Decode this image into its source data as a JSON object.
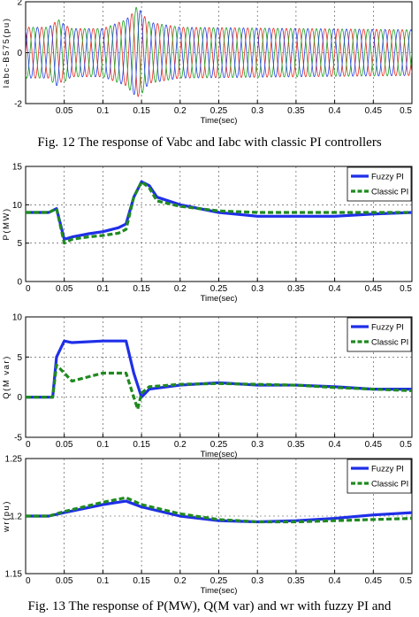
{
  "captions": {
    "fig12": "Fig. 12 The response of Vabc and Iabc with classic PI controllers",
    "fig13": "Fig. 13 The response of P(MW), Q(M var) and wr  with fuzzy PI and"
  },
  "colors": {
    "fuzzy": "#1f2fe8",
    "classic": "#1f8a1f",
    "phase_a": "#e8281e",
    "phase_b": "#1a9e1a",
    "phase_c": "#2040e0"
  },
  "chart_data": [
    {
      "type": "line",
      "id": "iabc",
      "title": "",
      "xlabel": "Time(sec)",
      "ylabel": "Iabc-B575(pu)",
      "xlim": [
        0,
        0.5
      ],
      "ylim": [
        -2,
        2
      ],
      "xticks": [
        "0.05",
        "0.1",
        "0.15",
        "0.2",
        "0.25",
        "0.3",
        "0.35",
        "0.4",
        "0.45",
        "0.5"
      ],
      "yticks": [
        "-2",
        "0",
        "2"
      ],
      "grid": true,
      "frequency_hz": 60,
      "series": [
        {
          "phase": "a",
          "envelope": [
            [
              0,
              1.0
            ],
            [
              0.03,
              1.0
            ],
            [
              0.04,
              1.25
            ],
            [
              0.06,
              0.95
            ],
            [
              0.1,
              0.95
            ],
            [
              0.13,
              1.3
            ],
            [
              0.145,
              1.75
            ],
            [
              0.16,
              1.2
            ],
            [
              0.2,
              1.0
            ],
            [
              0.5,
              0.9
            ]
          ]
        },
        {
          "phase": "b",
          "envelope": [
            [
              0,
              1.0
            ],
            [
              0.03,
              1.0
            ],
            [
              0.04,
              1.35
            ],
            [
              0.06,
              0.95
            ],
            [
              0.1,
              0.95
            ],
            [
              0.13,
              1.3
            ],
            [
              0.145,
              1.85
            ],
            [
              0.16,
              1.2
            ],
            [
              0.2,
              1.0
            ],
            [
              0.5,
              0.9
            ]
          ]
        },
        {
          "phase": "c",
          "envelope": [
            [
              0,
              1.0
            ],
            [
              0.03,
              1.0
            ],
            [
              0.04,
              1.3
            ],
            [
              0.06,
              0.95
            ],
            [
              0.1,
              0.95
            ],
            [
              0.13,
              1.3
            ],
            [
              0.145,
              1.8
            ],
            [
              0.16,
              1.2
            ],
            [
              0.2,
              1.0
            ],
            [
              0.5,
              0.9
            ]
          ]
        }
      ]
    },
    {
      "type": "line",
      "id": "power",
      "title": "",
      "xlabel": "Time(sec)",
      "ylabel": "P(MW)",
      "xlim": [
        0,
        0.5
      ],
      "ylim": [
        0,
        15
      ],
      "xticks": [
        "0",
        "0.05",
        "0.1",
        "0.15",
        "0.2",
        "0.25",
        "0.3",
        "0.35",
        "0.4",
        "0.45",
        "0.5"
      ],
      "yticks": [
        "0",
        "5",
        "10",
        "15"
      ],
      "grid": true,
      "legend": "top-right",
      "series": [
        {
          "name": "Fuzzy PI",
          "style": "solid",
          "x": [
            0,
            0.03,
            0.04,
            0.05,
            0.06,
            0.08,
            0.1,
            0.12,
            0.13,
            0.14,
            0.15,
            0.16,
            0.17,
            0.2,
            0.25,
            0.3,
            0.35,
            0.4,
            0.45,
            0.5
          ],
          "y": [
            9,
            9,
            9.5,
            5.5,
            5.8,
            6.2,
            6.5,
            7,
            7.5,
            11,
            13,
            12.5,
            11,
            10,
            9,
            8.5,
            8.5,
            8.5,
            8.8,
            9
          ]
        },
        {
          "name": "Classic PI",
          "style": "dashed",
          "x": [
            0,
            0.03,
            0.04,
            0.05,
            0.06,
            0.08,
            0.1,
            0.12,
            0.13,
            0.14,
            0.15,
            0.16,
            0.17,
            0.2,
            0.25,
            0.3,
            0.35,
            0.4,
            0.45,
            0.5
          ],
          "y": [
            9,
            9,
            9.5,
            5,
            5.5,
            5.8,
            6,
            6.3,
            6.8,
            11,
            13,
            12.2,
            10.5,
            9.8,
            9.2,
            9,
            9,
            9,
            9,
            9
          ]
        }
      ]
    },
    {
      "type": "line",
      "id": "reactive",
      "title": "",
      "xlabel": "Time(sec)",
      "ylabel": "Q(M var)",
      "xlim": [
        0,
        0.5
      ],
      "ylim": [
        -5,
        10
      ],
      "xticks": [
        "0",
        "0.05",
        "0.1",
        "0.15",
        "0.2",
        "0.25",
        "0.3",
        "0.35",
        "0.4",
        "0.45",
        "0.5"
      ],
      "yticks": [
        "-5",
        "0",
        "5",
        "10"
      ],
      "grid": true,
      "legend": "top-right",
      "series": [
        {
          "name": "Fuzzy PI",
          "style": "solid",
          "x": [
            0,
            0.035,
            0.04,
            0.05,
            0.06,
            0.1,
            0.13,
            0.14,
            0.15,
            0.16,
            0.2,
            0.25,
            0.3,
            0.35,
            0.4,
            0.45,
            0.5
          ],
          "y": [
            0,
            0,
            5,
            7,
            6.8,
            7,
            7,
            3,
            0,
            1,
            1.5,
            1.8,
            1.5,
            1.5,
            1.3,
            1,
            1
          ]
        },
        {
          "name": "Classic PI",
          "style": "dashed",
          "x": [
            0,
            0.035,
            0.04,
            0.05,
            0.06,
            0.08,
            0.1,
            0.13,
            0.14,
            0.145,
            0.15,
            0.16,
            0.2,
            0.25,
            0.3,
            0.35,
            0.4,
            0.45,
            0.5
          ],
          "y": [
            0,
            0,
            4,
            3,
            2,
            2.5,
            3,
            3,
            0,
            -1.5,
            0.5,
            1.3,
            1.6,
            1.7,
            1.6,
            1.5,
            1.2,
            1,
            0.8
          ]
        }
      ]
    },
    {
      "type": "line",
      "id": "speed",
      "title": "",
      "xlabel": "Time(sec)",
      "ylabel": "wr(pu)",
      "xlim": [
        0,
        0.5
      ],
      "ylim": [
        1.15,
        1.25
      ],
      "xticks": [
        "0",
        "0.05",
        "0.1",
        "0.15",
        "0.2",
        "0.25",
        "0.3",
        "0.35",
        "0.4",
        "0.45",
        "0.5"
      ],
      "yticks": [
        "1.15",
        "1.2",
        "1.25"
      ],
      "grid": true,
      "legend": "top-right",
      "series": [
        {
          "name": "Fuzzy PI",
          "style": "solid",
          "x": [
            0,
            0.03,
            0.05,
            0.1,
            0.13,
            0.15,
            0.2,
            0.25,
            0.3,
            0.35,
            0.4,
            0.45,
            0.5
          ],
          "y": [
            1.2,
            1.2,
            1.203,
            1.21,
            1.213,
            1.208,
            1.2,
            1.196,
            1.195,
            1.196,
            1.198,
            1.201,
            1.203
          ]
        },
        {
          "name": "Classic PI",
          "style": "dashed",
          "x": [
            0,
            0.03,
            0.05,
            0.1,
            0.13,
            0.15,
            0.2,
            0.25,
            0.3,
            0.35,
            0.4,
            0.45,
            0.5
          ],
          "y": [
            1.2,
            1.2,
            1.204,
            1.212,
            1.216,
            1.21,
            1.202,
            1.197,
            1.195,
            1.195,
            1.196,
            1.197,
            1.198
          ]
        }
      ]
    }
  ]
}
